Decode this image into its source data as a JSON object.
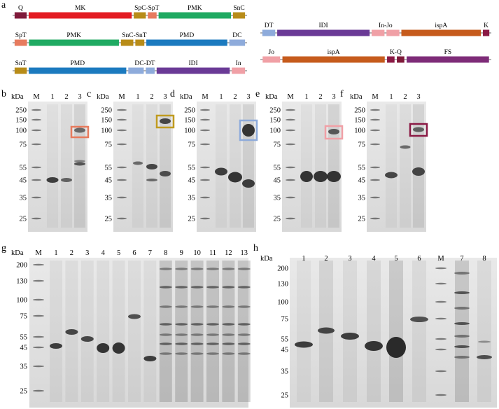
{
  "colors": {
    "Q": "#7f1a3a",
    "MK": "#e31c23",
    "SpC": "#b88c18",
    "SpT": "#e77b5e",
    "PMK": "#1faa62",
    "SnC": "#b88c18",
    "SnT": "#b88c18",
    "PMD": "#1b7abf",
    "DC": "#8eabdb",
    "DT": "#8eabdb",
    "IDI": "#6a3a96",
    "In": "#f0a0a6",
    "Jo": "#f0a0a6",
    "ispA": "#c65b1c",
    "K": "#8b1a45",
    "FS": "#7e2c78",
    "box_b": "#e77b5e",
    "box_c": "#c09b20",
    "box_d": "#8eabdb",
    "box_e": "#f0a0a6",
    "box_f": "#8b1a45"
  },
  "panels": {
    "a": "a",
    "b": "b",
    "c": "c",
    "d": "d",
    "e": "e",
    "f": "f",
    "g": "g",
    "h": "h"
  },
  "constructs": [
    {
      "segments": [
        {
          "key": "Q",
          "label": "Q",
          "w": 0.055
        },
        {
          "key": "MK",
          "label": "MK",
          "w": 0.47
        },
        {
          "key": "SpC",
          "label": "",
          "w": 0.055
        },
        {
          "key": "SpT",
          "label": "SpC-SpT",
          "w": 0.04
        },
        {
          "key": "PMK",
          "label": "PMK",
          "w": 0.33
        },
        {
          "key": "SnC",
          "label": "SnC",
          "w": 0.055
        }
      ]
    },
    {
      "segments": [
        {
          "key": "SpT",
          "label": "SpT",
          "w": 0.055
        },
        {
          "key": "PMK",
          "label": "PMK",
          "w": 0.4
        },
        {
          "key": "SnC",
          "label": "",
          "w": 0.055
        },
        {
          "key": "SnT",
          "label": "SnC-SnT",
          "w": 0.04
        },
        {
          "key": "PMD",
          "label": "PMD",
          "w": 0.36
        },
        {
          "key": "DC",
          "label": "DC",
          "w": 0.07
        }
      ]
    },
    {
      "segments": [
        {
          "key": "SnT",
          "label": "SnT",
          "w": 0.055
        },
        {
          "key": "PMD",
          "label": "PMD",
          "w": 0.44
        },
        {
          "key": "DC",
          "label": "",
          "w": 0.07
        },
        {
          "key": "DT",
          "label": "DC-DT",
          "w": 0.04
        },
        {
          "key": "IDI",
          "label": "IDI",
          "w": 0.33
        },
        {
          "key": "In",
          "label": "In",
          "w": 0.06
        }
      ]
    },
    {
      "segments": [
        {
          "key": "DT",
          "label": "DT",
          "w": 0.06
        },
        {
          "key": "IDI",
          "label": "IDI",
          "w": 0.43
        },
        {
          "key": "In",
          "label": "",
          "w": 0.06
        },
        {
          "key": "Jo",
          "label": "In-Jo",
          "w": 0.06
        },
        {
          "key": "ispA",
          "label": "ispA",
          "w": 0.37
        },
        {
          "key": "K",
          "label": "K",
          "w": 0.03
        }
      ]
    },
    {
      "segments": [
        {
          "key": "Jo",
          "label": "Jo",
          "w": 0.07
        },
        {
          "key": "ispA",
          "label": "ispA",
          "w": 0.41
        },
        {
          "key": "K",
          "label": "",
          "w": 0.03
        },
        {
          "key": "Q",
          "label": "K-Q",
          "w": 0.03
        },
        {
          "key": "FS",
          "label": "FS",
          "w": 0.33
        }
      ]
    }
  ],
  "kda_label": "kDa",
  "marker_label": "M",
  "small_gels": [
    {
      "panel": "b",
      "lanes": [
        "1",
        "2",
        "3"
      ],
      "kda": [
        "250",
        "150",
        "100",
        "75",
        "55",
        "45",
        "35",
        "25"
      ]
    },
    {
      "panel": "c",
      "lanes": [
        "1",
        "2",
        "3"
      ],
      "kda": [
        "250",
        "150",
        "100",
        "75",
        "55",
        "45",
        "35",
        "25"
      ]
    },
    {
      "panel": "d",
      "lanes": [
        "1",
        "2",
        "3"
      ],
      "kda": [
        "250",
        "150",
        "100",
        "75",
        "55",
        "45",
        "35",
        "25"
      ]
    },
    {
      "panel": "e",
      "lanes": [
        "1",
        "2",
        "3"
      ],
      "kda": [
        "250",
        "150",
        "100",
        "75",
        "55",
        "45",
        "35",
        "25"
      ]
    },
    {
      "panel": "f",
      "lanes": [
        "1",
        "2",
        "3"
      ],
      "kda": [
        "250",
        "150",
        "100",
        "75",
        "55",
        "45",
        "35",
        "25"
      ]
    }
  ],
  "gel_g": {
    "lanes": [
      "1",
      "2",
      "3",
      "4",
      "5",
      "6",
      "7",
      "8",
      "9",
      "10",
      "11",
      "12",
      "13"
    ],
    "kda": [
      "200",
      "130",
      "100",
      "75",
      "55",
      "45",
      "35",
      "25"
    ]
  },
  "gel_h": {
    "lanes": [
      "1",
      "2",
      "3",
      "4",
      "5",
      "6",
      "M",
      "7",
      "8"
    ],
    "kda": [
      "200",
      "130",
      "100",
      "75",
      "55",
      "45",
      "35",
      "25"
    ]
  }
}
